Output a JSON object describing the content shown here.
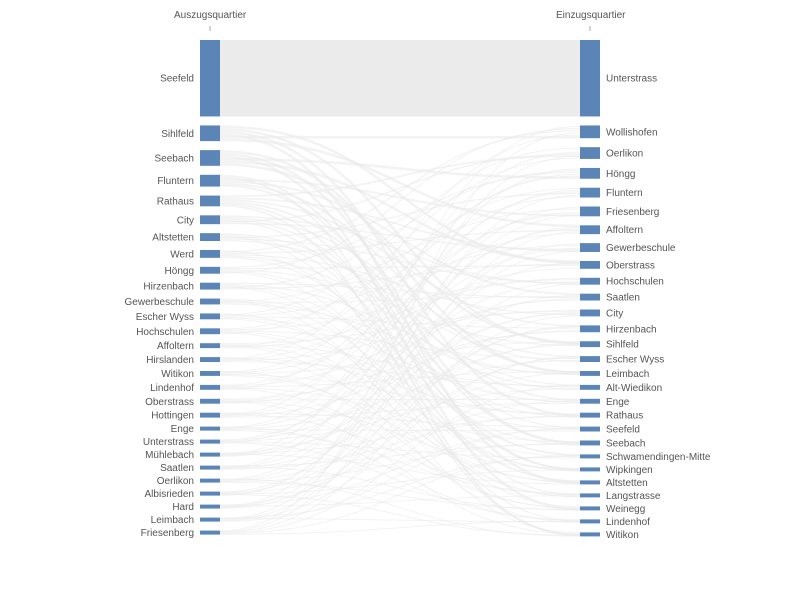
{
  "chart_data": {
    "type": "sankey",
    "left_axis_label": "Auszugsquartier",
    "right_axis_label": "Einzugsquartier",
    "colors": {
      "node": "#5b85b7",
      "link": "#e9e9e9",
      "label": "#555555"
    },
    "left_nodes": [
      {
        "name": "Seefeld",
        "value": 78
      },
      {
        "name": "Sihlfeld",
        "value": 16
      },
      {
        "name": "Seebach",
        "value": 16
      },
      {
        "name": "Fluntern",
        "value": 12
      },
      {
        "name": "Rathaus",
        "value": 11
      },
      {
        "name": "City",
        "value": 9
      },
      {
        "name": "Altstetten",
        "value": 8
      },
      {
        "name": "Werd",
        "value": 8
      },
      {
        "name": "Höngg",
        "value": 7
      },
      {
        "name": "Hirzenbach",
        "value": 7
      },
      {
        "name": "Gewerbeschule",
        "value": 6
      },
      {
        "name": "Escher Wyss",
        "value": 6
      },
      {
        "name": "Hochschulen",
        "value": 6
      },
      {
        "name": "Affoltern",
        "value": 5
      },
      {
        "name": "Hirslanden",
        "value": 5
      },
      {
        "name": "Witikon",
        "value": 5
      },
      {
        "name": "Lindenhof",
        "value": 5
      },
      {
        "name": "Oberstrass",
        "value": 5
      },
      {
        "name": "Hottingen",
        "value": 5
      },
      {
        "name": "Enge",
        "value": 4
      },
      {
        "name": "Unterstrass",
        "value": 4
      },
      {
        "name": "Mühlebach",
        "value": 4
      },
      {
        "name": "Saatlen",
        "value": 4
      },
      {
        "name": "Oerlikon",
        "value": 4
      },
      {
        "name": "Albisrieden",
        "value": 4
      },
      {
        "name": "Hard",
        "value": 4
      },
      {
        "name": "Leimbach",
        "value": 4
      },
      {
        "name": "Friesenberg",
        "value": 4
      }
    ],
    "right_nodes": [
      {
        "name": "Unterstrass",
        "value": 78
      },
      {
        "name": "Wollishofen",
        "value": 13
      },
      {
        "name": "Oerlikon",
        "value": 12
      },
      {
        "name": "Höngg",
        "value": 11
      },
      {
        "name": "Fluntern",
        "value": 10
      },
      {
        "name": "Friesenberg",
        "value": 10
      },
      {
        "name": "Affoltern",
        "value": 9
      },
      {
        "name": "Gewerbeschule",
        "value": 9
      },
      {
        "name": "Oberstrass",
        "value": 8
      },
      {
        "name": "Hochschulen",
        "value": 7
      },
      {
        "name": "Saatlen",
        "value": 7
      },
      {
        "name": "City",
        "value": 7
      },
      {
        "name": "Hirzenbach",
        "value": 7
      },
      {
        "name": "Sihlfeld",
        "value": 6
      },
      {
        "name": "Escher Wyss",
        "value": 6
      },
      {
        "name": "Leimbach",
        "value": 5
      },
      {
        "name": "Alt-Wiedikon",
        "value": 5
      },
      {
        "name": "Enge",
        "value": 5
      },
      {
        "name": "Rathaus",
        "value": 5
      },
      {
        "name": "Seefeld",
        "value": 5
      },
      {
        "name": "Seebach",
        "value": 5
      },
      {
        "name": "Schwamendingen-Mitte",
        "value": 4
      },
      {
        "name": "Wipkingen",
        "value": 4
      },
      {
        "name": "Altstetten",
        "value": 4
      },
      {
        "name": "Langstrasse",
        "value": 4
      },
      {
        "name": "Weinegg",
        "value": 4
      },
      {
        "name": "Lindenhof",
        "value": 4
      },
      {
        "name": "Witikon",
        "value": 4
      }
    ]
  }
}
